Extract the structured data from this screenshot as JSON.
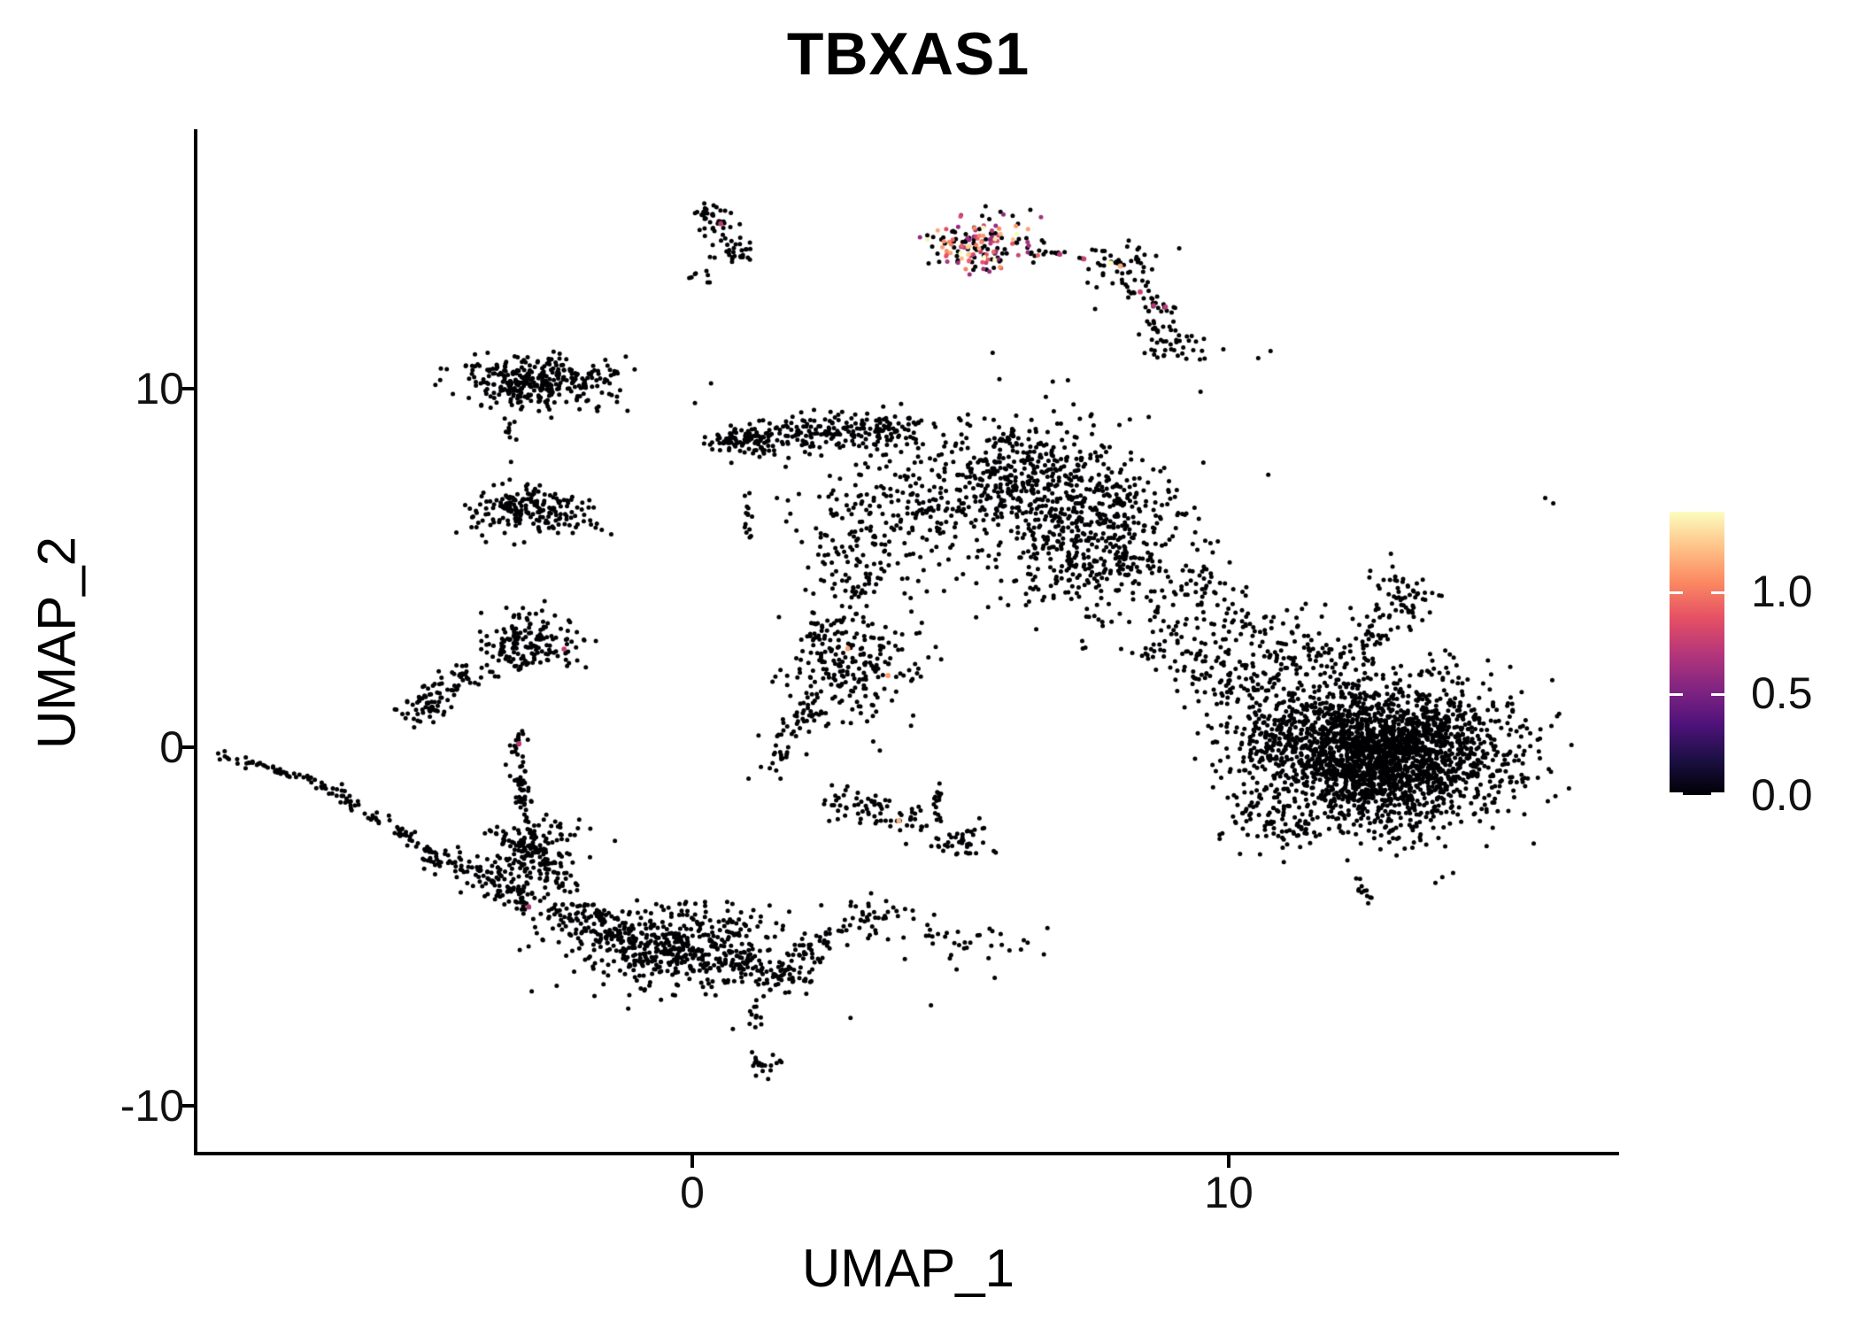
{
  "title": "TBXAS1",
  "axes": {
    "x_label": "UMAP_1",
    "y_label": "UMAP_2",
    "x_tick_labels": [
      "0",
      "10"
    ],
    "y_tick_labels": [
      "10",
      "0",
      "-10"
    ]
  },
  "legend": {
    "tick_labels": [
      "1.0",
      "0.5",
      "0.0"
    ],
    "tick_values": [
      1.0,
      0.5,
      0.0
    ]
  },
  "chart_data": {
    "type": "scatter",
    "title": "TBXAS1",
    "xlabel": "UMAP_1",
    "ylabel": "UMAP_2",
    "xlim": [
      -9.2,
      17.3
    ],
    "ylim": [
      -11.3,
      17.2
    ],
    "x_ticks": [
      0,
      10
    ],
    "y_ticks": [
      10,
      0,
      -10
    ],
    "grid": false,
    "background": "#ffffff",
    "point_color_default": "#000004",
    "color_scale": {
      "min": 0.0,
      "max": 1.39,
      "legend_ticks": [
        1.0,
        0.5,
        0.0
      ],
      "palette": "magma",
      "palette_stops": [
        "#000004",
        "#1c1044",
        "#4f127b",
        "#812581",
        "#b5367a",
        "#e55064",
        "#fb8861",
        "#fec287",
        "#fcfdbf"
      ]
    },
    "clusters": [
      {
        "t": "g",
        "x": 0.42,
        "y": 14.75,
        "sx": 0.2,
        "sy": 0.26,
        "n": 40
      },
      {
        "t": "g",
        "x": 0.8,
        "y": 13.85,
        "sx": 0.18,
        "sy": 0.2,
        "n": 30
      },
      {
        "t": "g",
        "x": 0.22,
        "y": 13.15,
        "sx": 0.12,
        "sy": 0.08,
        "n": 8
      },
      {
        "t": "g",
        "x": 5.35,
        "y": 14.0,
        "sx": 0.52,
        "sy": 0.34,
        "n": 165,
        "mix": [
          [
            0.52,
            0,
            0
          ],
          [
            0.28,
            0.55,
            0.95
          ],
          [
            0.16,
            1.0,
            1.28
          ],
          [
            0.04,
            1.3,
            1.42
          ]
        ]
      },
      {
        "t": "b",
        "x1": 6.3,
        "y1": 13.85,
        "x2": 7.35,
        "y2": 13.68,
        "w": 0.05,
        "n": 10
      },
      {
        "t": "g",
        "x": 8.0,
        "y": 13.4,
        "sx": 0.33,
        "sy": 0.28,
        "n": 48
      },
      {
        "t": "b",
        "x1": 7.95,
        "y1": 13.05,
        "x2": 8.85,
        "y2": 12.15,
        "w": 0.12,
        "n": 30
      },
      {
        "t": "b",
        "x1": 8.45,
        "y1": 11.95,
        "x2": 8.75,
        "y2": 11.55,
        "w": 0.1,
        "n": 10
      },
      {
        "t": "g",
        "x": 9.05,
        "y": 11.2,
        "sx": 0.33,
        "sy": 0.24,
        "n": 40
      },
      {
        "t": "g",
        "x": -2.95,
        "y": 10.15,
        "sx": 0.72,
        "sy": 0.36,
        "n": 330
      },
      {
        "t": "b",
        "x1": -1.55,
        "y1": 10.42,
        "x2": -1.02,
        "y2": 10.52,
        "w": 0.05,
        "n": 7
      },
      {
        "t": "g",
        "x": -2.95,
        "y": 6.6,
        "sx": 0.55,
        "sy": 0.32,
        "n": 205
      },
      {
        "t": "b",
        "x1": -3.45,
        "y1": 9.1,
        "x2": -3.3,
        "y2": 7.7,
        "w": 0.08,
        "n": 9
      },
      {
        "t": "b",
        "x1": 0.45,
        "y1": 8.55,
        "x2": 4.3,
        "y2": 8.95,
        "w": 0.26,
        "n": 270
      },
      {
        "t": "b",
        "x1": 0.25,
        "y1": 8.5,
        "x2": 1.3,
        "y2": 8.6,
        "w": 0.1,
        "n": 35
      },
      {
        "t": "g",
        "x": 6.15,
        "y": 7.5,
        "sx": 1.05,
        "sy": 0.8,
        "n": 520
      },
      {
        "t": "g",
        "x": 7.55,
        "y": 5.6,
        "sx": 0.95,
        "sy": 1.05,
        "n": 470
      },
      {
        "t": "g",
        "x": 3.6,
        "y": 6.3,
        "sx": 0.85,
        "sy": 1.0,
        "n": 200
      },
      {
        "t": "b",
        "x1": 0.98,
        "y1": 7.1,
        "x2": 1.06,
        "y2": 5.8,
        "w": 0.05,
        "n": 14
      },
      {
        "t": "g",
        "x": 2.95,
        "y": 2.2,
        "sx": 0.6,
        "sy": 0.75,
        "n": 210
      },
      {
        "t": "b",
        "x1": 1.35,
        "y1": -0.8,
        "x2": 2.35,
        "y2": 1.4,
        "w": 0.16,
        "n": 55
      },
      {
        "t": "b",
        "x1": 2.3,
        "y1": 3.0,
        "x2": 3.3,
        "y2": 5.3,
        "w": 0.32,
        "n": 70
      },
      {
        "t": "b",
        "x1": 2.6,
        "y1": -1.25,
        "x2": 4.35,
        "y2": -2.15,
        "w": 0.2,
        "n": 65
      },
      {
        "t": "b",
        "x1": 2.52,
        "y1": -2.05,
        "x2": 3.66,
        "y2": -2.05,
        "w": 0.03,
        "n": 8
      },
      {
        "t": "b",
        "x1": 4.5,
        "y1": -0.85,
        "x2": 4.6,
        "y2": -2.1,
        "w": 0.07,
        "n": 16
      },
      {
        "t": "g",
        "x": 4.95,
        "y": -2.65,
        "sx": 0.33,
        "sy": 0.22,
        "n": 42
      },
      {
        "t": "b",
        "x1": 8.8,
        "y1": 3.4,
        "x2": 10.3,
        "y2": 1.3,
        "w": 0.45,
        "n": 140
      },
      {
        "t": "b",
        "x1": 9.3,
        "y1": 5.0,
        "x2": 10.7,
        "y2": 3.1,
        "w": 0.3,
        "n": 60
      },
      {
        "t": "g",
        "x": 12.8,
        "y": -0.2,
        "sx": 1.12,
        "sy": 1.0,
        "n": 2500
      },
      {
        "t": "g",
        "x": 13.1,
        "y": 4.2,
        "sx": 0.33,
        "sy": 0.42,
        "n": 65
      },
      {
        "t": "b",
        "x1": 12.85,
        "y1": 3.5,
        "x2": 12.35,
        "y2": 2.5,
        "w": 0.2,
        "n": 35
      },
      {
        "t": "g",
        "x": 11.2,
        "y": 2.6,
        "sx": 0.5,
        "sy": 0.55,
        "n": 85
      },
      {
        "t": "g",
        "x": 10.75,
        "y": 0.5,
        "sx": 0.45,
        "sy": 0.75,
        "n": 105
      },
      {
        "t": "b",
        "x1": 10.2,
        "y1": -1.8,
        "x2": 11.4,
        "y2": -2.5,
        "w": 0.25,
        "n": 55
      },
      {
        "t": "b",
        "x1": 12.3,
        "y1": -3.4,
        "x2": 12.7,
        "y2": -4.3,
        "w": 0.1,
        "n": 10
      },
      {
        "t": "b",
        "x1": -8.85,
        "y1": -0.2,
        "x2": -7.0,
        "y2": -0.95,
        "w": 0.05,
        "n": 50
      },
      {
        "t": "b",
        "x1": -7.0,
        "y1": -0.95,
        "x2": -4.8,
        "y2": -3.0,
        "w": 0.1,
        "n": 75
      },
      {
        "t": "b",
        "x1": -4.8,
        "y1": -3.0,
        "x2": -2.95,
        "y2": -4.3,
        "w": 0.2,
        "n": 120
      },
      {
        "t": "b",
        "x1": -3.25,
        "y1": 0.45,
        "x2": -3.08,
        "y2": -3.0,
        "w": 0.09,
        "n": 85
      },
      {
        "t": "g",
        "x": -3.0,
        "y": 2.9,
        "sx": 0.5,
        "sy": 0.42,
        "n": 160
      },
      {
        "t": "b",
        "x1": -5.3,
        "y1": 0.7,
        "x2": -4.05,
        "y2": 2.35,
        "w": 0.22,
        "n": 100
      },
      {
        "t": "g",
        "x": -2.9,
        "y": -3.05,
        "sx": 0.42,
        "sy": 0.48,
        "n": 135
      },
      {
        "t": "b",
        "x1": -3.7,
        "y1": -2.3,
        "x2": -2.2,
        "y2": -3.9,
        "w": 0.12,
        "n": 40
      },
      {
        "t": "g",
        "x": -0.3,
        "y": -5.6,
        "sx": 1.0,
        "sy": 0.58,
        "n": 500
      },
      {
        "t": "b",
        "x1": -2.55,
        "y1": -4.5,
        "x2": -1.1,
        "y2": -5.3,
        "w": 0.28,
        "n": 120
      },
      {
        "t": "b",
        "x1": 0.8,
        "y1": -5.95,
        "x2": 2.05,
        "y2": -6.6,
        "w": 0.22,
        "n": 75
      },
      {
        "t": "b",
        "x1": 1.95,
        "y1": -5.9,
        "x2": 3.4,
        "y2": -4.65,
        "w": 0.18,
        "n": 55
      },
      {
        "t": "b",
        "x1": 2.9,
        "y1": -4.4,
        "x2": 6.4,
        "y2": -6.0,
        "w": 0.45,
        "n": 60
      },
      {
        "t": "b",
        "x1": 1.12,
        "y1": -6.9,
        "x2": 1.3,
        "y2": -7.95,
        "w": 0.06,
        "n": 11
      },
      {
        "t": "g",
        "x": 1.3,
        "y": -8.8,
        "sx": 0.15,
        "sy": 0.2,
        "n": 20
      }
    ],
    "singles": [
      [
        15.9,
        6.95
      ],
      [
        16.05,
        6.8
      ],
      [
        10.55,
        10.85
      ],
      [
        10.78,
        11.05
      ],
      [
        5.6,
        11.0
      ],
      [
        6.72,
        10.2
      ],
      [
        9.9,
        11.1
      ],
      [
        0.05,
        9.6
      ],
      [
        0.35,
        10.15
      ],
      [
        12.42,
        -4.0
      ],
      [
        12.6,
        -4.35
      ],
      [
        4.45,
        -7.2
      ],
      [
        2.95,
        -7.55
      ]
    ],
    "highlight_points": [
      {
        "x": 0.53,
        "y": 14.6,
        "v": 0.72
      },
      {
        "x": 6.85,
        "y": 13.75,
        "v": 0.72
      },
      {
        "x": 7.3,
        "y": 13.62,
        "v": 0.78
      },
      {
        "x": 7.8,
        "y": 13.5,
        "v": 1.42
      },
      {
        "x": 7.98,
        "y": 13.42,
        "v": 1.15
      },
      {
        "x": 8.35,
        "y": 12.7,
        "v": 0.78
      },
      {
        "x": 8.6,
        "y": 12.32,
        "v": 0.7
      },
      {
        "x": 8.82,
        "y": 12.28,
        "v": 0.72
      },
      {
        "x": -2.39,
        "y": 2.74,
        "v": 0.75
      },
      {
        "x": -3.23,
        "y": 0.1,
        "v": 0.72
      },
      {
        "x": -3.05,
        "y": -4.45,
        "v": 0.68
      },
      {
        "x": 2.9,
        "y": 2.75,
        "v": 1.12
      },
      {
        "x": 3.65,
        "y": 2.0,
        "v": 1.1
      },
      {
        "x": 3.85,
        "y": -2.05,
        "v": 1.18
      }
    ]
  }
}
